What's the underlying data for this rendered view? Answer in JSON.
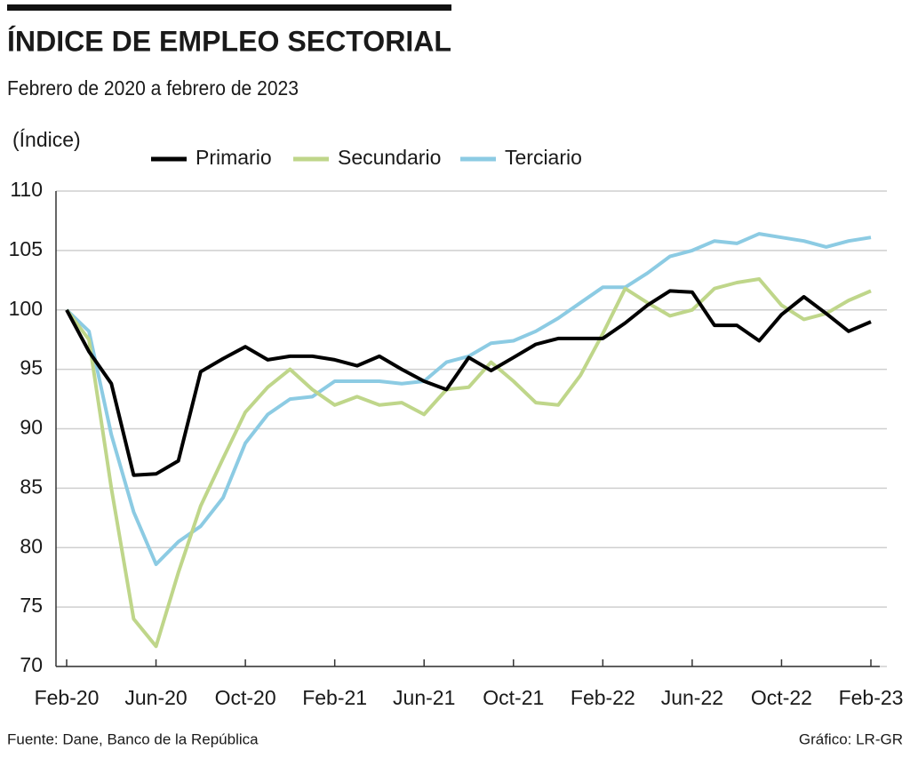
{
  "chart_data": {
    "type": "line",
    "title": "ÍNDICE DE EMPLEO SECTORIAL",
    "subtitle": "Febrero de 2020 a febrero de 2023",
    "y_label": "(Índice)",
    "source": "Fuente: Dane, Banco de la República",
    "credit": "Gráfico: LR-GR",
    "categories": [
      "Feb-20",
      null,
      null,
      null,
      "Jun-20",
      null,
      null,
      null,
      "Oct-20",
      null,
      null,
      null,
      "Feb-21",
      null,
      null,
      null,
      "Jun-21",
      null,
      null,
      null,
      "Oct-21",
      null,
      null,
      null,
      "Feb-22",
      null,
      null,
      null,
      "Jun-22",
      null,
      null,
      null,
      "Oct-22",
      null,
      null,
      null,
      "Feb-23"
    ],
    "series": [
      {
        "name": "Primario",
        "color": "#000000",
        "values": [
          100,
          96.5,
          93.8,
          86.1,
          86.2,
          87.3,
          94.8,
          95.9,
          96.9,
          95.8,
          96.1,
          96.1,
          95.8,
          95.3,
          96.1,
          95.0,
          94.0,
          93.3,
          96.0,
          94.9,
          96.0,
          97.1,
          97.6,
          97.6,
          97.6,
          98.9,
          100.4,
          101.6,
          101.5,
          98.7,
          98.7,
          97.4,
          99.6,
          101.1,
          99.7,
          98.2,
          99.0
        ]
      },
      {
        "name": "Secundario",
        "color": "#bfd68a",
        "values": [
          100,
          97.5,
          85,
          74,
          71.7,
          77.9,
          83.5,
          87.5,
          91.4,
          93.5,
          95.0,
          93.3,
          92.0,
          92.7,
          92.0,
          92.2,
          91.2,
          93.3,
          93.5,
          95.6,
          94.0,
          92.2,
          92.0,
          94.5,
          98.0,
          101.8,
          100.6,
          99.5,
          100.0,
          101.8,
          102.3,
          102.6,
          100.4,
          99.2,
          99.7,
          100.8,
          101.6
        ]
      },
      {
        "name": "Terciario",
        "color": "#8ccbe3",
        "values": [
          100,
          98.2,
          89.5,
          83,
          78.6,
          80.5,
          81.8,
          84.2,
          88.8,
          91.2,
          92.5,
          92.7,
          94.0,
          94.0,
          94.0,
          93.8,
          94.0,
          95.6,
          96.1,
          97.2,
          97.4,
          98.2,
          99.3,
          100.6,
          101.9,
          101.9,
          103.1,
          104.5,
          105.0,
          105.8,
          105.6,
          106.4,
          106.1,
          105.8,
          105.3,
          105.8,
          106.1
        ]
      }
    ],
    "ylim": [
      70,
      110
    ],
    "yticks": [
      70,
      75,
      80,
      85,
      90,
      95,
      100,
      105,
      110
    ],
    "grid": true
  }
}
